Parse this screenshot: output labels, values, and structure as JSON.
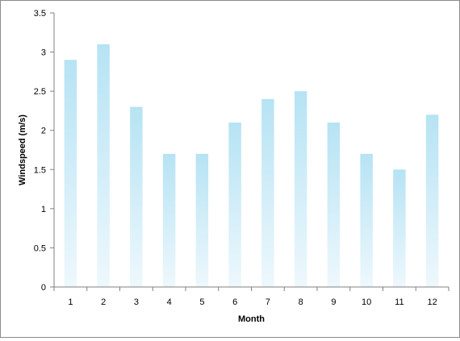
{
  "chart_data": {
    "type": "bar",
    "title": "",
    "xlabel": "Month",
    "ylabel": "Windspeed (m/s)",
    "categories": [
      "1",
      "2",
      "3",
      "4",
      "5",
      "6",
      "7",
      "8",
      "9",
      "10",
      "11",
      "12"
    ],
    "values": [
      2.9,
      3.1,
      2.3,
      1.7,
      1.7,
      2.1,
      2.4,
      2.5,
      2.1,
      1.7,
      1.5,
      2.2
    ],
    "ylim": [
      0,
      3.5
    ],
    "yticks": [
      "0",
      "0.5",
      "1",
      "1.5",
      "2",
      "2.5",
      "3",
      "3.5"
    ],
    "grid": false,
    "legend": "none",
    "bar_color_top": "#b6e3f4",
    "bar_color_bottom": "#eef8fd"
  }
}
